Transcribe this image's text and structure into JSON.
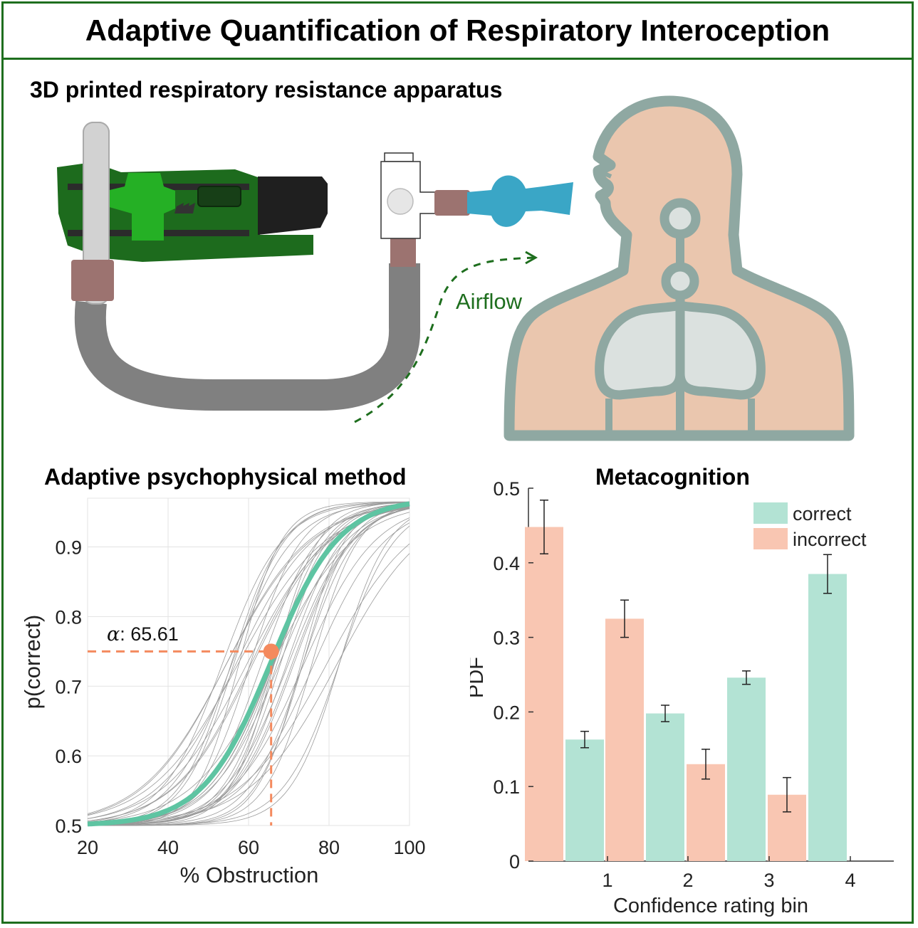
{
  "title": "Adaptive Quantification of Respiratory Interoception",
  "apparatus": {
    "heading": "3D printed respiratory resistance apparatus",
    "airflow_label": "Airflow"
  },
  "psychometric": {
    "heading": "Adaptive psychophysical method",
    "xlabel": "% Obstruction",
    "ylabel": "p(correct)",
    "x_ticks": [
      "20",
      "40",
      "60",
      "80",
      "100"
    ],
    "y_ticks": [
      "0.5",
      "0.6",
      "0.7",
      "0.8",
      "0.9"
    ],
    "alpha_symbol": "α",
    "alpha_text": ": 65.61",
    "alpha_value": 65.61,
    "criterion": 0.75,
    "xlim": [
      20,
      100
    ],
    "ylim": [
      0.5,
      0.97
    ],
    "mean_curve_color": "#5ec4a2",
    "marker_color": "#f48a5e"
  },
  "chart_data": {
    "type": "bar",
    "title": "Metacognition",
    "xlabel": "Confidence rating bin",
    "ylabel": "PDF",
    "categories": [
      "1",
      "2",
      "3",
      "4"
    ],
    "ylim": [
      0,
      0.5
    ],
    "y_ticks": [
      "0",
      "0.1",
      "0.2",
      "0.3",
      "0.4",
      "0.5"
    ],
    "legend_position": "top-right",
    "series": [
      {
        "name": "correct",
        "color": "#b3e3d4",
        "values": [
          0.163,
          0.198,
          0.246,
          0.385
        ],
        "errors": [
          0.011,
          0.011,
          0.009,
          0.026
        ]
      },
      {
        "name": "incorrect",
        "color": "#f9c6b2",
        "values": [
          0.448,
          0.325,
          0.13,
          0.089
        ],
        "errors": [
          0.036,
          0.025,
          0.02,
          0.023
        ]
      }
    ]
  }
}
